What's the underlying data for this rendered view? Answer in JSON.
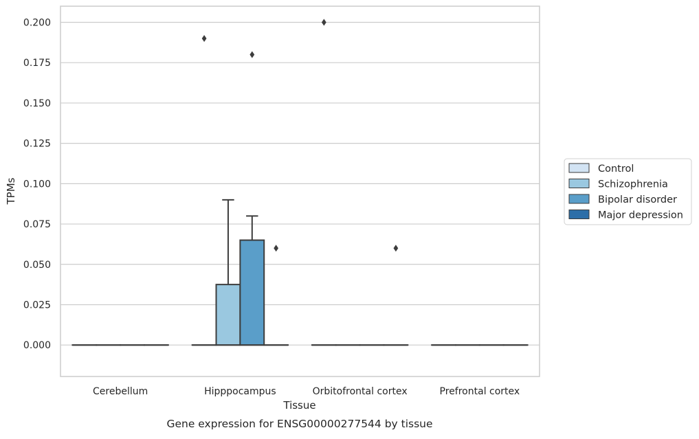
{
  "chart_data": {
    "type": "box",
    "title": "",
    "caption": "Gene expression for ENSG00000277544 by tissue",
    "xlabel": "Tissue",
    "ylabel": "TPMs",
    "ylim": [
      -0.0195,
      0.21
    ],
    "yticks": [
      "0.000",
      "0.025",
      "0.050",
      "0.075",
      "0.100",
      "0.125",
      "0.150",
      "0.175",
      "0.200"
    ],
    "grid": "horizontal",
    "legend_position": "right",
    "categories": [
      "Cerebellum",
      "Hipppocampus",
      "Orbitofrontal cortex",
      "Prefrontal cortex"
    ],
    "series": [
      {
        "name": "Control",
        "color": "#d2e3f3"
      },
      {
        "name": "Schizophrenia",
        "color": "#9ac8e0"
      },
      {
        "name": "Bipolar disorder",
        "color": "#5a9ec9"
      },
      {
        "name": "Major depression",
        "color": "#2c6ea8"
      }
    ],
    "boxes": [
      [
        {
          "q1": 0,
          "median": 0,
          "q3": 0,
          "whislo": 0,
          "whishi": 0,
          "fliers": []
        },
        {
          "q1": 0,
          "median": 0,
          "q3": 0,
          "whislo": 0,
          "whishi": 0,
          "fliers": []
        },
        {
          "q1": 0,
          "median": 0,
          "q3": 0,
          "whislo": 0,
          "whishi": 0,
          "fliers": []
        },
        {
          "q1": 0,
          "median": 0,
          "q3": 0,
          "whislo": 0,
          "whishi": 0,
          "fliers": []
        }
      ],
      [
        {
          "q1": 0,
          "median": 0,
          "q3": 0,
          "whislo": 0,
          "whishi": 0,
          "fliers": [
            0.19
          ]
        },
        {
          "q1": 0,
          "median": 0,
          "q3": 0.0375,
          "whislo": 0,
          "whishi": 0.09,
          "fliers": []
        },
        {
          "q1": 0,
          "median": 0,
          "q3": 0.065,
          "whislo": 0,
          "whishi": 0.08,
          "fliers": [
            0.18
          ]
        },
        {
          "q1": 0,
          "median": 0,
          "q3": 0,
          "whislo": 0,
          "whishi": 0,
          "fliers": [
            0.06
          ]
        }
      ],
      [
        {
          "q1": 0,
          "median": 0,
          "q3": 0,
          "whislo": 0,
          "whishi": 0,
          "fliers": [
            0.2
          ]
        },
        {
          "q1": 0,
          "median": 0,
          "q3": 0,
          "whislo": 0,
          "whishi": 0,
          "fliers": []
        },
        {
          "q1": 0,
          "median": 0,
          "q3": 0,
          "whislo": 0,
          "whishi": 0,
          "fliers": []
        },
        {
          "q1": 0,
          "median": 0,
          "q3": 0,
          "whislo": 0,
          "whishi": 0,
          "fliers": [
            0.06
          ]
        }
      ],
      [
        {
          "q1": 0,
          "median": 0,
          "q3": 0,
          "whislo": 0,
          "whishi": 0,
          "fliers": []
        },
        {
          "q1": 0,
          "median": 0,
          "q3": 0,
          "whislo": 0,
          "whishi": 0,
          "fliers": []
        },
        {
          "q1": 0,
          "median": 0,
          "q3": 0,
          "whislo": 0,
          "whishi": 0,
          "fliers": []
        },
        {
          "q1": 0,
          "median": 0,
          "q3": 0,
          "whislo": 0,
          "whishi": 0,
          "fliers": []
        }
      ]
    ]
  }
}
